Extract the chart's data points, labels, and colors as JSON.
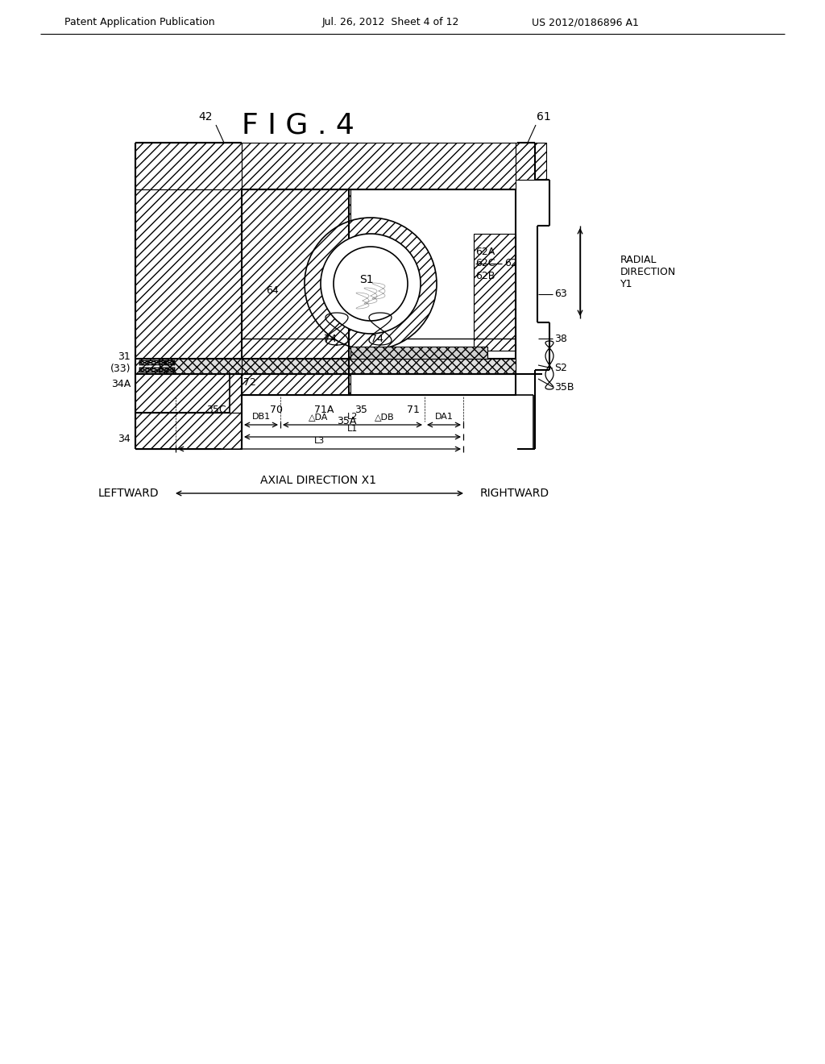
{
  "title": "F I G . 4",
  "header_left": "Patent Application Publication",
  "header_mid": "Jul. 26, 2012  Sheet 4 of 12",
  "header_right": "US 2012/0186896 A1",
  "bg_color": "#ffffff",
  "line_color": "#000000",
  "label_fontsize": 9,
  "header_fontsize": 9,
  "title_fontsize": 26
}
